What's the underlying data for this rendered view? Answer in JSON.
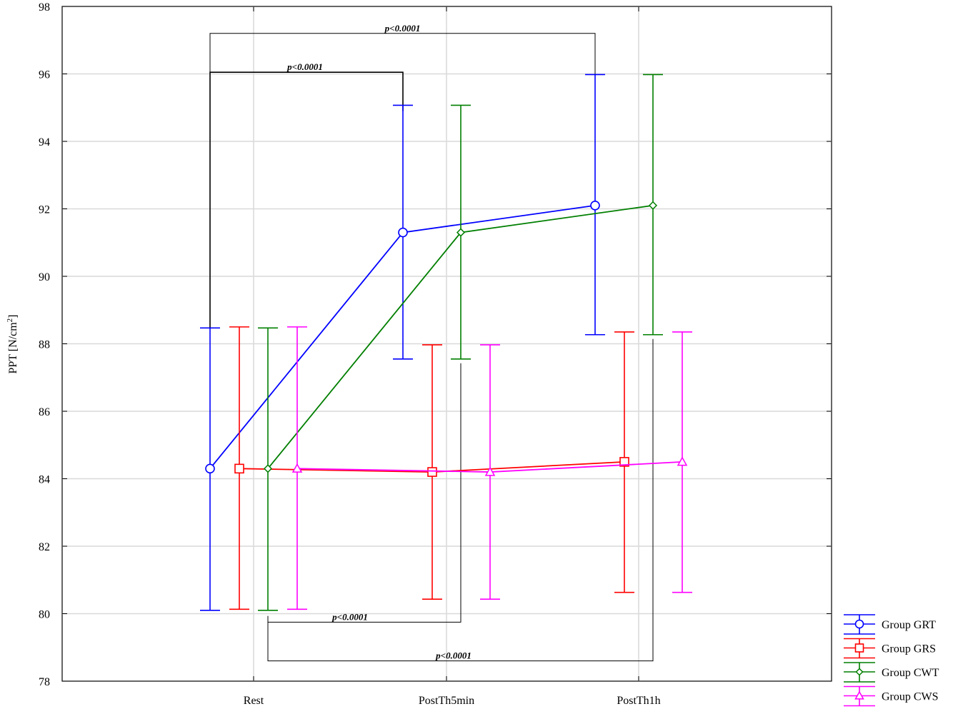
{
  "chart_data": {
    "type": "line",
    "categories": [
      "Rest",
      "PostTh5min",
      "PostTh1h"
    ],
    "ylabel_main": "PPT [N/cm",
    "ylabel_sup": "2",
    "ylabel_end": "]",
    "ylim": [
      78,
      98
    ],
    "yticks": [
      78,
      80,
      82,
      84,
      86,
      88,
      90,
      92,
      94,
      96,
      98
    ],
    "grid": true,
    "legend_position": "bottom-right-outside",
    "series": [
      {
        "name": "Group GRT",
        "color": "#0000ff",
        "marker": "circle",
        "values": [
          84.3,
          91.3,
          92.1
        ],
        "lower": [
          80.1,
          87.55,
          88.27
        ],
        "upper": [
          88.47,
          95.07,
          95.98
        ]
      },
      {
        "name": "Group GRS",
        "color": "#ff0000",
        "marker": "square",
        "values": [
          84.3,
          84.2,
          84.5
        ],
        "lower": [
          80.13,
          80.43,
          80.63
        ],
        "upper": [
          88.5,
          87.97,
          88.35
        ]
      },
      {
        "name": "Group CWT",
        "color": "#007f00",
        "marker": "diamond",
        "values": [
          84.3,
          91.3,
          92.1
        ],
        "lower": [
          80.1,
          87.55,
          88.27
        ],
        "upper": [
          88.47,
          95.07,
          95.98
        ]
      },
      {
        "name": "Group CWS",
        "color": "#ff00ff",
        "marker": "triangle",
        "values": [
          84.3,
          84.2,
          84.5
        ],
        "lower": [
          80.13,
          80.43,
          80.63
        ],
        "upper": [
          88.5,
          87.97,
          88.35
        ]
      }
    ],
    "annotations": [
      {
        "label": "p<0.0001",
        "from_series": 0,
        "from_cat": 0,
        "to_series": 0,
        "to_cat": 2,
        "bracket_y": 97.2,
        "side": "top"
      },
      {
        "label": "p<0.0001",
        "from_series": 0,
        "from_cat": 0,
        "to_series": 0,
        "to_cat": 1,
        "bracket_y": 96.05,
        "side": "top"
      },
      {
        "label": "p<0.0001",
        "from_series": 2,
        "from_cat": 0,
        "to_series": 2,
        "to_cat": 1,
        "bracket_y": 79.75,
        "side": "bottom"
      },
      {
        "label": "p<0.0001",
        "from_series": 2,
        "from_cat": 0,
        "to_series": 2,
        "to_cat": 2,
        "bracket_y": 78.6,
        "side": "bottom"
      }
    ]
  }
}
